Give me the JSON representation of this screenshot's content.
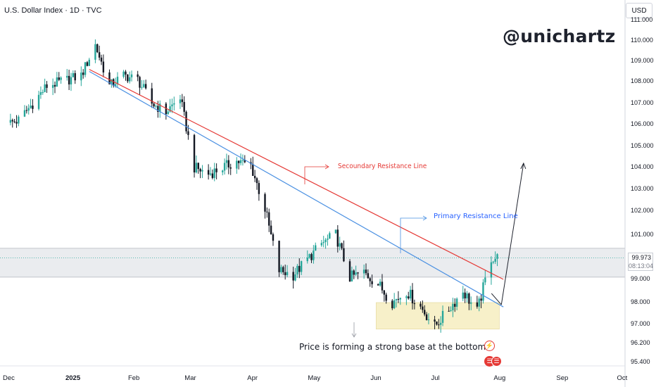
{
  "header": {
    "symbol_line": "U.S. Dollar Index · 1D · TVC"
  },
  "brand": "@unichartz",
  "currency_button": "USD",
  "price_tag": {
    "price": "99.973",
    "countdown": "08:13:04"
  },
  "annotations": {
    "secondary_resistance": "Secoundary Resistance Line",
    "primary_resistance": "Primary Resistance Line",
    "base_note": "Price is forming a strong base at the bottom"
  },
  "events": [
    {
      "icon": "lightning-event-icon",
      "glyph": "⚡"
    },
    {
      "icon": "us-flag-event-icon",
      "glyph": "☰"
    },
    {
      "icon": "us-flag-event-icon",
      "glyph": "☰"
    }
  ],
  "colors": {
    "up": "#26a69a",
    "down": "#131722",
    "secondary_line": "#e53935",
    "primary_line": "#4a90e2",
    "base_zone": "#f7f0c9",
    "band": "#e0e3eb"
  },
  "chart_data": {
    "type": "candlestick",
    "title": "U.S. Dollar Index · 1D · TVC",
    "y_scale": "log",
    "x_tick_labels": [
      "Dec",
      "2025",
      "Feb",
      "Mar",
      "Apr",
      "May",
      "Jun",
      "Jul",
      "Aug",
      "Sep",
      "Oct"
    ],
    "y_tick_labels": [
      "111.000",
      "110.000",
      "109.000",
      "108.000",
      "107.000",
      "106.000",
      "105.000",
      "104.000",
      "103.000",
      "102.000",
      "101.000",
      "99.000",
      "98.000",
      "97.000",
      "96.200",
      "95.400"
    ],
    "ylim": [
      95.1,
      111.4
    ],
    "last_price": 99.973,
    "close_path": [
      {
        "date": "2024-11-29",
        "close": 106.0
      },
      {
        "date": "2024-12-06",
        "close": 106.2
      },
      {
        "date": "2024-12-13",
        "close": 107.0
      },
      {
        "date": "2024-12-20",
        "close": 107.8
      },
      {
        "date": "2024-12-27",
        "close": 108.0
      },
      {
        "date": "2025-01-06",
        "close": 108.3
      },
      {
        "date": "2025-01-13",
        "close": 109.8
      },
      {
        "date": "2025-01-20",
        "close": 107.8
      },
      {
        "date": "2025-01-27",
        "close": 108.3
      },
      {
        "date": "2025-02-03",
        "close": 108.1
      },
      {
        "date": "2025-02-10",
        "close": 107.0
      },
      {
        "date": "2025-02-17",
        "close": 106.6
      },
      {
        "date": "2025-02-24",
        "close": 107.3
      },
      {
        "date": "2025-03-03",
        "close": 104.0
      },
      {
        "date": "2025-03-10",
        "close": 103.7
      },
      {
        "date": "2025-03-17",
        "close": 104.0
      },
      {
        "date": "2025-03-24",
        "close": 104.3
      },
      {
        "date": "2025-03-31",
        "close": 104.1
      },
      {
        "date": "2025-04-07",
        "close": 102.1
      },
      {
        "date": "2025-04-14",
        "close": 99.4
      },
      {
        "date": "2025-04-21",
        "close": 99.2
      },
      {
        "date": "2025-04-28",
        "close": 99.9
      },
      {
        "date": "2025-05-05",
        "close": 100.6
      },
      {
        "date": "2025-05-12",
        "close": 101.0
      },
      {
        "date": "2025-05-19",
        "close": 99.1
      },
      {
        "date": "2025-05-26",
        "close": 99.3
      },
      {
        "date": "2025-06-02",
        "close": 98.8
      },
      {
        "date": "2025-06-09",
        "close": 98.0
      },
      {
        "date": "2025-06-16",
        "close": 98.5
      },
      {
        "date": "2025-06-23",
        "close": 97.8
      },
      {
        "date": "2025-06-30",
        "close": 96.9
      },
      {
        "date": "2025-07-07",
        "close": 97.7
      },
      {
        "date": "2025-07-14",
        "close": 98.5
      },
      {
        "date": "2025-07-21",
        "close": 97.6
      },
      {
        "date": "2025-07-28",
        "close": 99.97
      }
    ],
    "secondary_resistance_line": {
      "from": {
        "date": "2025-01-10",
        "value": 108.6
      },
      "to": {
        "date": "2025-08-03",
        "value": 99.0
      }
    },
    "primary_resistance_line": {
      "from": {
        "date": "2025-01-10",
        "value": 108.5
      },
      "to": {
        "date": "2025-08-03",
        "value": 97.8
      }
    },
    "projection_arrow": {
      "from": {
        "date": "2025-08-02",
        "value": 97.9
      },
      "to": {
        "date": "2025-08-13",
        "value": 104.2
      }
    },
    "resistance_band": [
      99.1,
      100.4
    ],
    "base_zone": {
      "from": "2025-06-01",
      "to": "2025-08-01",
      "range": [
        96.8,
        98.0
      ]
    }
  }
}
